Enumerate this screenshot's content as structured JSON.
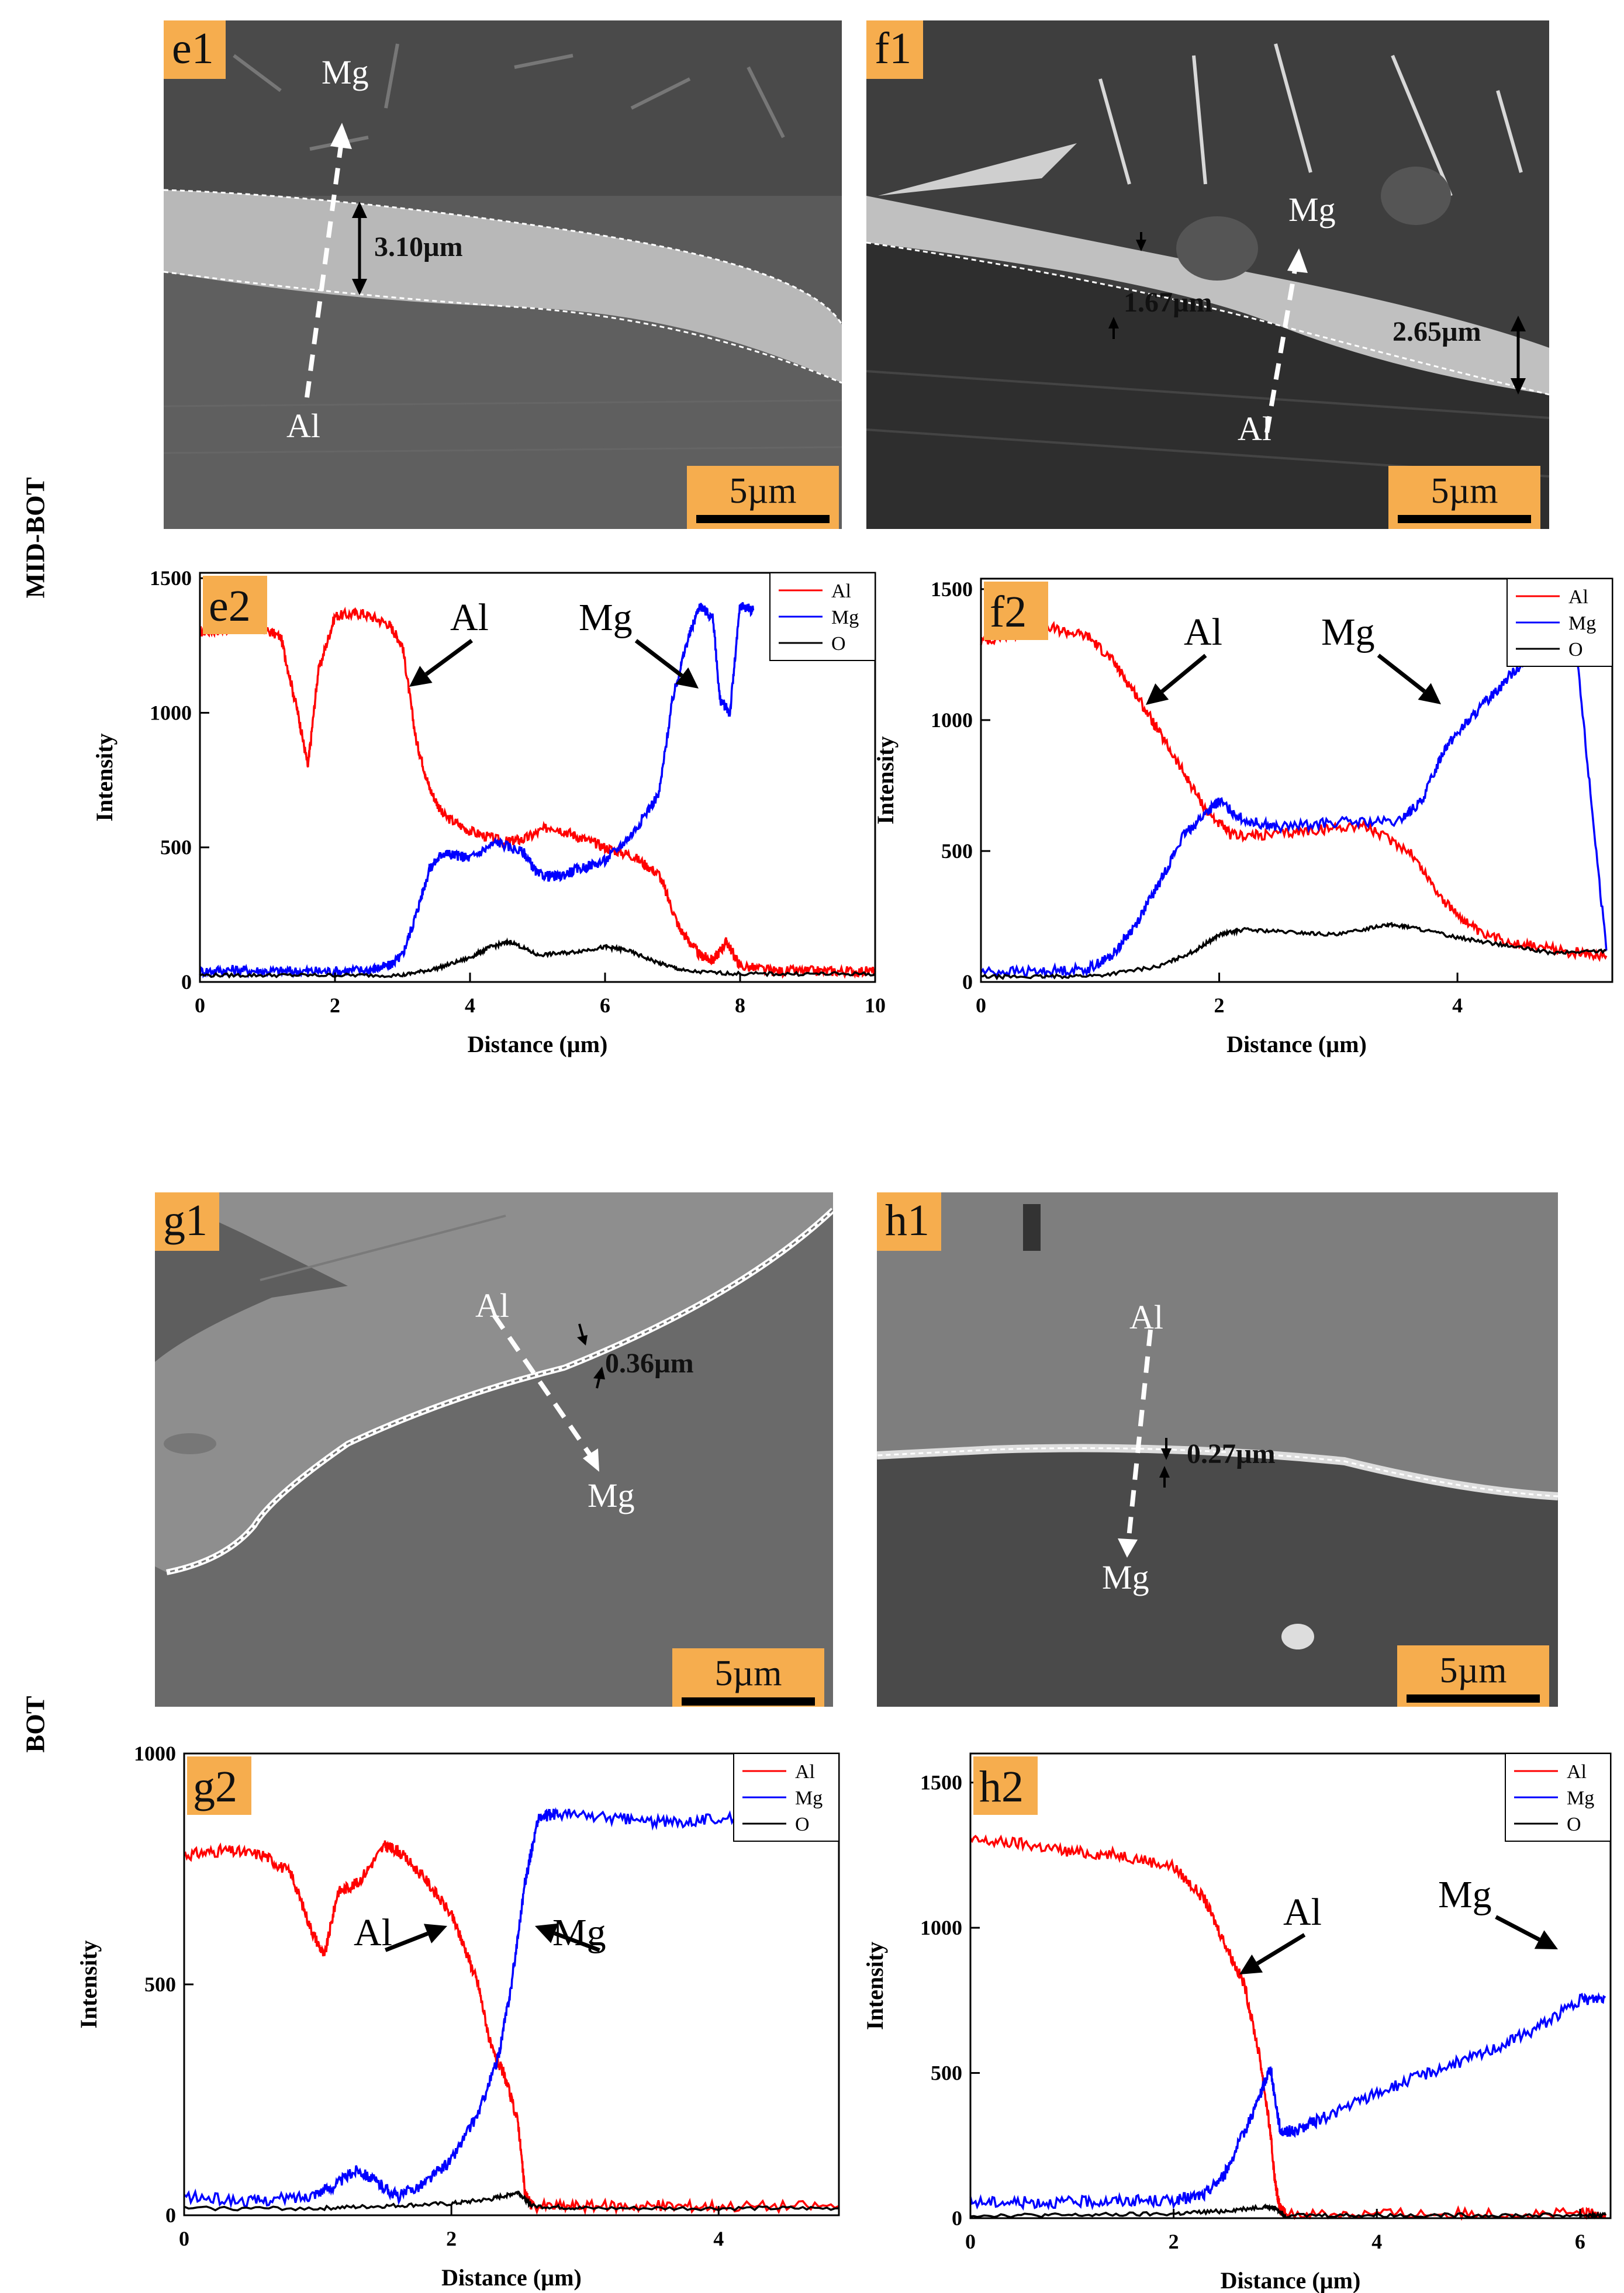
{
  "rows": [
    "MID-BOT",
    "BOT"
  ],
  "sem_panels": {
    "e1": {
      "label": "e1",
      "top": "Mg",
      "bottom": "Al",
      "thickness": [
        "3.10µm"
      ],
      "scale": "5µm"
    },
    "f1": {
      "label": "f1",
      "top": "Mg",
      "bottom": "Al",
      "thickness": [
        "1.67µm",
        "2.65µm"
      ],
      "scale": "5µm"
    },
    "g1": {
      "label": "g1",
      "top": "Al",
      "bottom": "Mg",
      "thickness": [
        "0.36µm"
      ],
      "scale": "5µm"
    },
    "h1": {
      "label": "h1",
      "top": "Al",
      "bottom": "Mg",
      "thickness": [
        "0.27µm"
      ],
      "scale": "5µm"
    }
  },
  "chart_data": [
    {
      "id": "e2",
      "type": "line",
      "panel_label": "e2",
      "xlabel": "Distance (µm)",
      "ylabel": "Intensity",
      "xlim": [
        0,
        10
      ],
      "ylim": [
        0,
        1520
      ],
      "xticks": [
        0,
        2,
        4,
        6,
        8,
        10
      ],
      "yticks": [
        0,
        500,
        1000,
        1500
      ],
      "legend": "top-right",
      "annotations": [
        "Al",
        "Mg"
      ],
      "series": [
        {
          "name": "Al",
          "color": "#ff0000",
          "x": [
            0,
            0.4,
            0.8,
            1.2,
            1.45,
            1.6,
            1.75,
            2.0,
            2.4,
            2.8,
            3.0,
            3.2,
            3.4,
            3.6,
            4.0,
            4.5,
            4.8,
            5.2,
            5.6,
            6.0,
            6.4,
            6.8,
            7.1,
            7.4,
            7.6,
            7.8,
            8.0,
            8.5,
            9.0,
            9.5,
            10
          ],
          "y": [
            1300,
            1310,
            1330,
            1280,
            1000,
            800,
            1150,
            1360,
            1370,
            1330,
            1250,
            900,
            720,
            620,
            560,
            520,
            530,
            580,
            540,
            500,
            470,
            400,
            200,
            100,
            80,
            150,
            60,
            40,
            40,
            40,
            40
          ]
        },
        {
          "name": "Mg",
          "color": "#0000ff",
          "x": [
            0,
            0.5,
            1,
            1.5,
            2,
            2.5,
            2.8,
            3.0,
            3.2,
            3.4,
            3.6,
            3.8,
            4.0,
            4.4,
            4.8,
            5.0,
            5.3,
            5.6,
            6.0,
            6.4,
            6.8,
            7.0,
            7.2,
            7.4,
            7.6,
            7.7,
            7.85,
            8.0,
            8.2
          ],
          "y": [
            40,
            45,
            40,
            40,
            40,
            45,
            60,
            100,
            250,
            420,
            480,
            470,
            460,
            520,
            480,
            400,
            390,
            420,
            450,
            550,
            700,
            1050,
            1250,
            1400,
            1350,
            1050,
            1000,
            1400,
            1380
          ]
        },
        {
          "name": "O",
          "color": "#000000",
          "x": [
            0,
            1,
            2,
            3,
            3.5,
            4,
            4.3,
            4.6,
            5.0,
            5.5,
            6.0,
            6.3,
            6.8,
            7.2,
            8,
            9,
            10
          ],
          "y": [
            25,
            25,
            25,
            25,
            50,
            90,
            130,
            150,
            100,
            110,
            130,
            120,
            70,
            40,
            30,
            30,
            30
          ]
        }
      ]
    },
    {
      "id": "f2",
      "type": "line",
      "panel_label": "f2",
      "xlabel": "Distance (µm)",
      "ylabel": "Intensity",
      "xlim": [
        0,
        5.3
      ],
      "ylim": [
        0,
        1540
      ],
      "xticks": [
        0,
        2,
        4
      ],
      "yticks": [
        0,
        500,
        1000,
        1500
      ],
      "legend": "top-right",
      "annotations": [
        "Al",
        "Mg"
      ],
      "series": [
        {
          "name": "Al",
          "color": "#ff0000",
          "x": [
            0,
            0.3,
            0.6,
            0.9,
            1.1,
            1.3,
            1.5,
            1.7,
            1.9,
            2.1,
            2.4,
            2.8,
            3.2,
            3.6,
            3.9,
            4.2,
            4.6,
            5.0,
            5.25
          ],
          "y": [
            1300,
            1330,
            1350,
            1320,
            1230,
            1100,
            950,
            800,
            650,
            560,
            560,
            580,
            600,
            500,
            300,
            180,
            140,
            110,
            100
          ]
        },
        {
          "name": "Mg",
          "color": "#0000ff",
          "x": [
            0,
            0.5,
            0.9,
            1.1,
            1.3,
            1.5,
            1.7,
            1.9,
            2.0,
            2.2,
            2.5,
            3.0,
            3.5,
            3.7,
            3.9,
            4.1,
            4.3,
            4.5,
            4.7,
            4.9,
            5.0,
            5.25
          ],
          "y": [
            40,
            40,
            50,
            100,
            220,
            380,
            560,
            650,
            690,
            620,
            590,
            610,
            610,
            690,
            900,
            1000,
            1100,
            1200,
            1250,
            1250,
            1250,
            120
          ]
        },
        {
          "name": "O",
          "color": "#000000",
          "x": [
            0,
            0.5,
            1.0,
            1.5,
            1.8,
            2.0,
            2.2,
            2.6,
            3.0,
            3.4,
            3.6,
            4.0,
            4.4,
            4.8,
            5.25
          ],
          "y": [
            20,
            20,
            25,
            60,
            120,
            180,
            200,
            190,
            180,
            220,
            210,
            170,
            140,
            110,
            120
          ]
        }
      ]
    },
    {
      "id": "g2",
      "type": "line",
      "panel_label": "g2",
      "xlabel": "Distance (µm)",
      "ylabel": "Intensity",
      "xlim": [
        0,
        4.9
      ],
      "ylim": [
        0,
        1000
      ],
      "xticks": [
        0,
        2,
        4
      ],
      "yticks": [
        0,
        500,
        1000
      ],
      "legend": "top-right",
      "annotations": [
        "Al",
        "Mg"
      ],
      "series": [
        {
          "name": "Al",
          "color": "#ff0000",
          "x": [
            0,
            0.3,
            0.6,
            0.8,
            0.95,
            1.05,
            1.15,
            1.3,
            1.5,
            1.6,
            1.8,
            2.0,
            2.1,
            2.2,
            2.3,
            2.4,
            2.5,
            2.55,
            2.6,
            3.0,
            3.5,
            4.0,
            4.9
          ],
          "y": [
            780,
            790,
            780,
            740,
            620,
            560,
            700,
            720,
            800,
            790,
            730,
            650,
            580,
            500,
            360,
            300,
            200,
            50,
            20,
            20,
            20,
            20,
            20
          ]
        },
        {
          "name": "Mg",
          "color": "#0000ff",
          "x": [
            0,
            0.5,
            0.9,
            1.1,
            1.3,
            1.45,
            1.6,
            1.8,
            2.0,
            2.2,
            2.35,
            2.45,
            2.55,
            2.65,
            2.8,
            3.2,
            3.6,
            4.0,
            4.5,
            4.9
          ],
          "y": [
            40,
            30,
            40,
            60,
            100,
            70,
            40,
            70,
            120,
            220,
            340,
            500,
            720,
            860,
            870,
            860,
            850,
            860,
            850,
            860
          ]
        },
        {
          "name": "O",
          "color": "#000000",
          "x": [
            0,
            1,
            1.5,
            2,
            2.3,
            2.5,
            2.6,
            3,
            4,
            4.9
          ],
          "y": [
            15,
            15,
            20,
            25,
            35,
            50,
            20,
            15,
            15,
            15
          ]
        }
      ]
    },
    {
      "id": "h2",
      "type": "line",
      "panel_label": "h2",
      "xlabel": "Distance (µm)",
      "ylabel": "Intensity",
      "xlim": [
        0,
        6.3
      ],
      "ylim": [
        0,
        1600
      ],
      "xticks": [
        0,
        2,
        4,
        6
      ],
      "yticks": [
        0,
        500,
        1000,
        1500
      ],
      "legend": "top-right",
      "annotations": [
        "Al",
        "Mg"
      ],
      "series": [
        {
          "name": "Al",
          "color": "#ff0000",
          "x": [
            0,
            0.5,
            1.0,
            1.5,
            2.0,
            2.3,
            2.5,
            2.7,
            2.85,
            2.95,
            3.0,
            3.05,
            3.1,
            4,
            5,
            6,
            6.25
          ],
          "y": [
            1300,
            1290,
            1260,
            1250,
            1210,
            1100,
            950,
            800,
            550,
            300,
            120,
            30,
            15,
            15,
            15,
            15,
            15
          ]
        },
        {
          "name": "Mg",
          "color": "#0000ff",
          "x": [
            0,
            0.5,
            1,
            1.5,
            2,
            2.3,
            2.5,
            2.7,
            2.85,
            2.95,
            3.05,
            3.2,
            3.5,
            4.0,
            4.5,
            5.0,
            5.5,
            6.0,
            6.25
          ],
          "y": [
            55,
            55,
            55,
            60,
            60,
            80,
            150,
            300,
            420,
            520,
            300,
            300,
            350,
            430,
            500,
            560,
            640,
            750,
            760
          ]
        },
        {
          "name": "O",
          "color": "#000000",
          "x": [
            0,
            1,
            2,
            2.5,
            2.9,
            3.0,
            3.1,
            4,
            5,
            6,
            6.25
          ],
          "y": [
            10,
            10,
            15,
            25,
            40,
            35,
            10,
            10,
            10,
            10,
            10
          ]
        }
      ]
    }
  ]
}
